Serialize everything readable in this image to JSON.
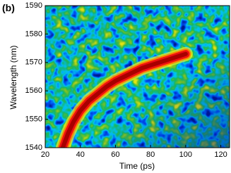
{
  "chart_data": {
    "type": "line",
    "panel_label": "(b)",
    "x_label": "Time (ps)",
    "y_label": "Wavelength (nm)",
    "x": [
      30,
      33,
      36,
      40,
      45,
      50,
      55,
      60,
      65,
      70,
      75,
      80,
      85,
      90,
      95,
      100
    ],
    "values": [
      1540,
      1545,
      1549,
      1553,
      1556.5,
      1559,
      1561.5,
      1563.5,
      1565,
      1566.5,
      1568,
      1569,
      1570,
      1571,
      1572,
      1573
    ],
    "color": "#a80000",
    "xlim": [
      20,
      125
    ],
    "ylim": [
      1540,
      1590
    ],
    "xticks": [
      20,
      40,
      60,
      80,
      100,
      120
    ],
    "yticks": [
      1540,
      1550,
      1560,
      1570,
      1580,
      1590
    ]
  }
}
